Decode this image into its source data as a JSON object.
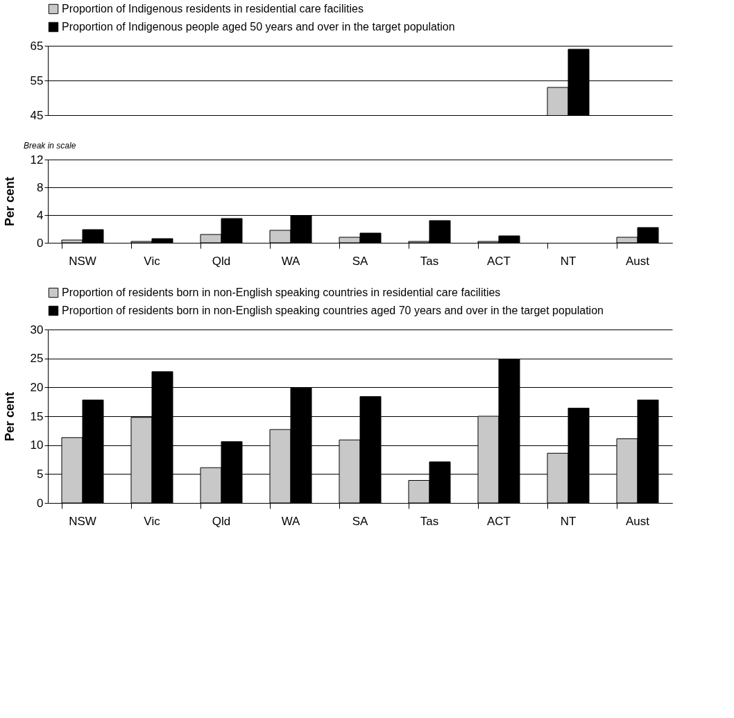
{
  "chart_data": [
    {
      "type": "bar",
      "categories": [
        null,
        null,
        null,
        null,
        null,
        null,
        null,
        null,
        null
      ],
      "series": [
        {
          "name": "Proportion of Indigenous residents in residential care facilities",
          "color": "#c8c8c8",
          "values": [
            null,
            null,
            null,
            null,
            null,
            null,
            null,
            53,
            null
          ]
        },
        {
          "name": "Proportion of Indigenous people aged 50 years and over in the target population",
          "color": "#000000",
          "values": [
            null,
            null,
            null,
            null,
            null,
            null,
            null,
            64,
            null
          ]
        }
      ],
      "ylim": [
        45,
        65
      ],
      "yticks": [
        45,
        55,
        65
      ],
      "grid": "y",
      "legend": "top left",
      "tick_labels": "y"
    },
    {
      "type": "bar",
      "categories": [
        "NSW",
        "Vic",
        "Qld",
        "WA",
        "SA",
        "Tas",
        "ACT",
        "NT",
        "Aust"
      ],
      "series": [
        {
          "color": "#c8c8c8",
          "values": [
            0.4,
            0.2,
            1.2,
            1.8,
            0.8,
            0.2,
            0.2,
            null,
            0.8
          ]
        },
        {
          "color": "#000000",
          "values": [
            1.9,
            0.6,
            3.5,
            3.9,
            1.4,
            3.2,
            1.0,
            null,
            2.2
          ]
        }
      ],
      "ylabel": "Per cent",
      "annotations": [
        "Break in scale"
      ],
      "ylim": [
        0,
        12
      ],
      "yticks": [
        0,
        4,
        8,
        12
      ],
      "grid": "y"
    },
    {
      "type": "bar",
      "categories": [
        "NSW",
        "Vic",
        "Qld",
        "WA",
        "SA",
        "Tas",
        "ACT",
        "NT",
        "Aust"
      ],
      "series": [
        {
          "name": "Proportion of residents born in non-English speaking countries in residential care facilities",
          "color": "#c8c8c8",
          "values": [
            11.3,
            14.8,
            6.1,
            12.7,
            10.9,
            3.9,
            15.0,
            8.6,
            11.1
          ]
        },
        {
          "name": "Proportion of residents born in non-English speaking countries aged 70 years and over in the target population",
          "color": "#000000",
          "values": [
            17.8,
            22.7,
            10.6,
            19.9,
            18.4,
            7.1,
            24.9,
            16.4,
            17.8
          ]
        }
      ],
      "ylabel": "Per cent",
      "ylim": [
        0,
        30
      ],
      "yticks": [
        0,
        5,
        10,
        15,
        20,
        25,
        30
      ],
      "grid": "y",
      "legend": "top left"
    }
  ]
}
